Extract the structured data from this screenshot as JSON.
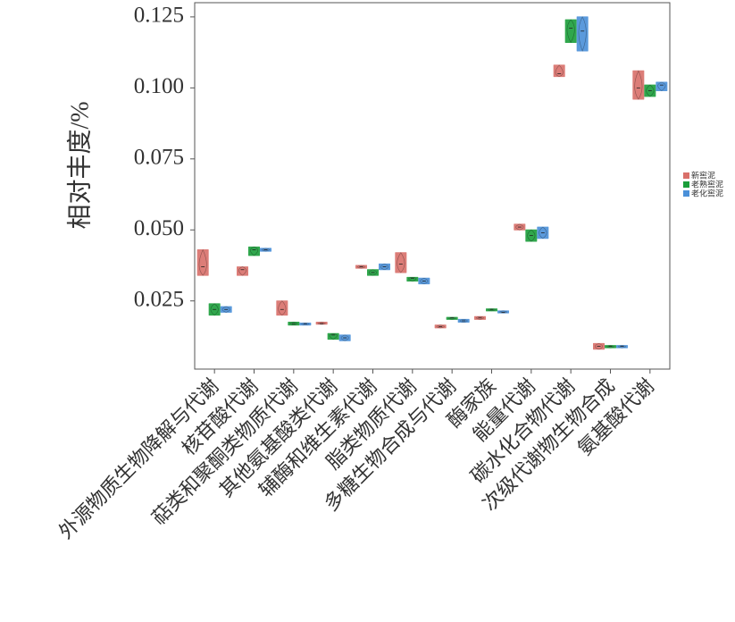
{
  "chart_data": {
    "type": "violin",
    "y_label": "相对丰度/%",
    "categories": [
      "外源物质生物降解与代谢",
      "核苷酸代谢",
      "萜类和聚酮类物质代谢",
      "其他氨基酸类代谢",
      "辅酶和维生素代谢",
      "脂类物质代谢",
      "多糖生物合成与代谢",
      "酶家族",
      "能量代谢",
      "碳水化合物代谢",
      "次级代谢物生物合成",
      "氨基酸代谢"
    ],
    "series": [
      {
        "name": "新窖泥",
        "color": "#d9706a",
        "values": [
          0.037,
          0.036,
          0.022,
          0.017,
          0.037,
          0.038,
          0.016,
          0.019,
          0.051,
          0.105,
          0.009,
          0.1
        ],
        "low": [
          0.034,
          0.034,
          0.02,
          0.0168,
          0.0365,
          0.035,
          0.0155,
          0.0185,
          0.05,
          0.104,
          0.008,
          0.096
        ],
        "high": [
          0.043,
          0.037,
          0.025,
          0.0175,
          0.0375,
          0.042,
          0.0165,
          0.0195,
          0.052,
          0.108,
          0.01,
          0.106
        ]
      },
      {
        "name": "老熟窖泥",
        "color": "#1a9e3a",
        "values": [
          0.022,
          0.043,
          0.017,
          0.013,
          0.035,
          0.033,
          0.019,
          0.022,
          0.048,
          0.121,
          0.009,
          0.099
        ],
        "low": [
          0.02,
          0.041,
          0.0165,
          0.0115,
          0.034,
          0.032,
          0.0185,
          0.0215,
          0.046,
          0.116,
          0.0085,
          0.097
        ],
        "high": [
          0.024,
          0.044,
          0.0175,
          0.0135,
          0.036,
          0.0333,
          0.0192,
          0.0222,
          0.05,
          0.124,
          0.0093,
          0.101
        ]
      },
      {
        "name": "老化窖泥",
        "color": "#4a90d9",
        "values": [
          0.022,
          0.043,
          0.017,
          0.012,
          0.037,
          0.032,
          0.018,
          0.021,
          0.049,
          0.12,
          0.009,
          0.101
        ],
        "low": [
          0.021,
          0.0425,
          0.0165,
          0.011,
          0.036,
          0.031,
          0.0175,
          0.0208,
          0.047,
          0.113,
          0.0085,
          0.099
        ],
        "high": [
          0.023,
          0.0435,
          0.0172,
          0.013,
          0.038,
          0.033,
          0.0185,
          0.0215,
          0.051,
          0.125,
          0.0093,
          0.102
        ]
      }
    ],
    "ylim": [
      0.001,
      0.13
    ],
    "yticks": [
      {
        "value": 0.025,
        "label": "0.025"
      },
      {
        "value": 0.05,
        "label": "0.050"
      },
      {
        "value": 0.075,
        "label": "0.075"
      },
      {
        "value": 0.1,
        "label": "0.100"
      },
      {
        "value": 0.125,
        "label": "0.125"
      }
    ],
    "legend": "right"
  }
}
